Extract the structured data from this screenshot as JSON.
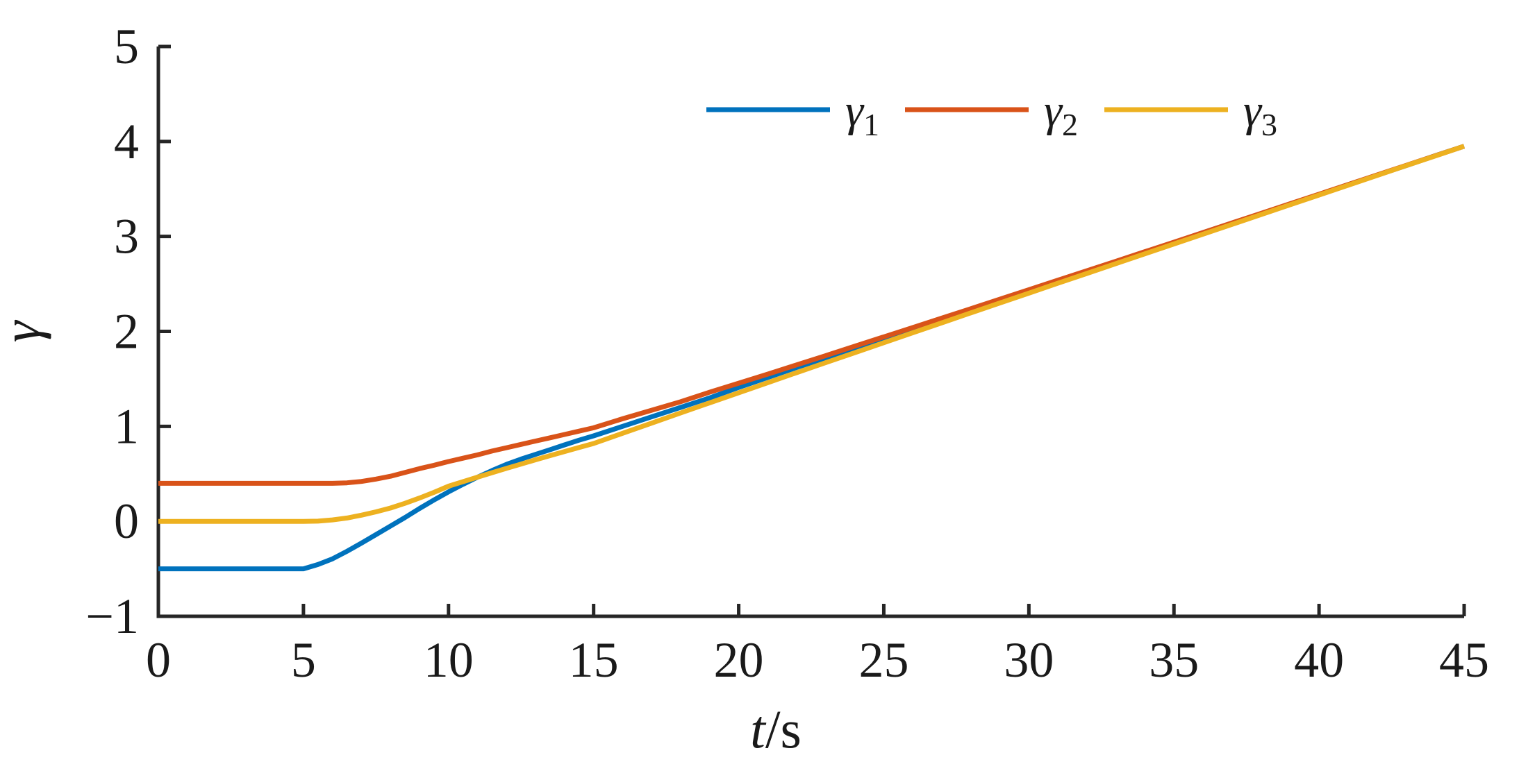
{
  "figure": {
    "ylabel": "γ",
    "xlabel_main": "t",
    "xlabel_suffix": "/s",
    "background": "#ffffff",
    "axis_color": "#262626",
    "text_color": "#1a1a1a"
  },
  "chart_data": {
    "type": "line",
    "title": "",
    "xlabel": "t/s",
    "ylabel": "γ",
    "xlim": [
      0,
      45
    ],
    "ylim": [
      -1,
      5
    ],
    "grid": false,
    "xticks": {
      "values": [
        0,
        5,
        10,
        15,
        20,
        25,
        30,
        35,
        40,
        45
      ],
      "labels": [
        "0",
        "5",
        "10",
        "15",
        "20",
        "25",
        "30",
        "35",
        "40",
        "45"
      ]
    },
    "yticks": {
      "values": [
        -1,
        0,
        1,
        2,
        3,
        4,
        5
      ],
      "labels": [
        "−1",
        "0",
        "1",
        "2",
        "3",
        "4",
        "5"
      ]
    },
    "legend": {
      "frame": false,
      "position": "top-center-right",
      "entries": [
        {
          "base": "γ",
          "sub": "1",
          "color": "#0072BD"
        },
        {
          "base": "γ",
          "sub": "2",
          "color": "#D95319"
        },
        {
          "base": "γ",
          "sub": "3",
          "color": "#EDB120"
        }
      ]
    },
    "series": [
      {
        "name": "γ1",
        "color": "#0072BD",
        "points": [
          [
            0,
            -0.5
          ],
          [
            5,
            -0.5
          ],
          [
            5.5,
            -0.455
          ],
          [
            6,
            -0.395
          ],
          [
            6.5,
            -0.315
          ],
          [
            7,
            -0.23
          ],
          [
            7.5,
            -0.14
          ],
          [
            8,
            -0.05
          ],
          [
            8.5,
            0.04
          ],
          [
            9,
            0.135
          ],
          [
            9.5,
            0.225
          ],
          [
            10,
            0.31
          ],
          [
            10.5,
            0.39
          ],
          [
            11,
            0.465
          ],
          [
            11.5,
            0.535
          ],
          [
            12,
            0.6
          ],
          [
            12.5,
            0.655
          ],
          [
            13,
            0.705
          ],
          [
            13.5,
            0.755
          ],
          [
            14,
            0.805
          ],
          [
            14.5,
            0.855
          ],
          [
            15,
            0.9
          ],
          [
            16,
            1.0
          ],
          [
            17,
            1.1
          ],
          [
            18,
            1.2
          ],
          [
            19,
            1.3
          ],
          [
            20,
            1.41
          ],
          [
            21,
            1.515
          ],
          [
            22,
            1.62
          ],
          [
            23,
            1.72
          ],
          [
            24,
            1.825
          ],
          [
            25,
            1.925
          ],
          [
            26,
            2.03
          ],
          [
            27,
            2.13
          ],
          [
            28,
            2.23
          ],
          [
            29,
            2.33
          ],
          [
            30,
            2.43
          ],
          [
            31,
            2.53
          ],
          [
            32,
            2.63
          ],
          [
            33,
            2.73
          ],
          [
            34,
            2.835
          ],
          [
            35,
            2.935
          ],
          [
            36,
            3.04
          ],
          [
            37,
            3.14
          ],
          [
            38,
            3.24
          ],
          [
            39,
            3.34
          ],
          [
            40,
            3.44
          ],
          [
            41,
            3.545
          ],
          [
            42,
            3.645
          ],
          [
            43,
            3.745
          ],
          [
            44,
            3.85
          ],
          [
            45,
            3.95
          ]
        ]
      },
      {
        "name": "γ2",
        "color": "#D95319",
        "points": [
          [
            0,
            0.4
          ],
          [
            5,
            0.4
          ],
          [
            5.5,
            0.4
          ],
          [
            6,
            0.4
          ],
          [
            6.5,
            0.405
          ],
          [
            7,
            0.42
          ],
          [
            7.5,
            0.445
          ],
          [
            8,
            0.475
          ],
          [
            8.5,
            0.515
          ],
          [
            9,
            0.555
          ],
          [
            9.5,
            0.59
          ],
          [
            10,
            0.63
          ],
          [
            10.5,
            0.665
          ],
          [
            11,
            0.7
          ],
          [
            11.5,
            0.74
          ],
          [
            12,
            0.775
          ],
          [
            12.5,
            0.81
          ],
          [
            13,
            0.845
          ],
          [
            13.5,
            0.88
          ],
          [
            14,
            0.915
          ],
          [
            14.5,
            0.95
          ],
          [
            15,
            0.985
          ],
          [
            16,
            1.08
          ],
          [
            17,
            1.17
          ],
          [
            18,
            1.26
          ],
          [
            19,
            1.36
          ],
          [
            20,
            1.455
          ],
          [
            21,
            1.55
          ],
          [
            22,
            1.648
          ],
          [
            23,
            1.745
          ],
          [
            24,
            1.844
          ],
          [
            25,
            1.942
          ],
          [
            26,
            2.041
          ],
          [
            27,
            2.14
          ],
          [
            28,
            2.239
          ],
          [
            29,
            2.339
          ],
          [
            30,
            2.439
          ],
          [
            31,
            2.539
          ],
          [
            32,
            2.639
          ],
          [
            33,
            2.739
          ],
          [
            34,
            2.84
          ],
          [
            35,
            2.94
          ],
          [
            36,
            3.041
          ],
          [
            37,
            3.142
          ],
          [
            38,
            3.243
          ],
          [
            39,
            3.344
          ],
          [
            40,
            3.445
          ],
          [
            41,
            3.546
          ],
          [
            42,
            3.647
          ],
          [
            43,
            3.748
          ],
          [
            44,
            3.849
          ],
          [
            45,
            3.95
          ]
        ]
      },
      {
        "name": "γ3",
        "color": "#EDB120",
        "points": [
          [
            0,
            0
          ],
          [
            5,
            0
          ],
          [
            5.5,
            0.002
          ],
          [
            6,
            0.015
          ],
          [
            6.5,
            0.035
          ],
          [
            7,
            0.065
          ],
          [
            7.5,
            0.1
          ],
          [
            8,
            0.14
          ],
          [
            8.5,
            0.19
          ],
          [
            9,
            0.245
          ],
          [
            9.5,
            0.305
          ],
          [
            10,
            0.37
          ],
          [
            10.5,
            0.418
          ],
          [
            11,
            0.465
          ],
          [
            11.5,
            0.512
          ],
          [
            12,
            0.558
          ],
          [
            12.5,
            0.603
          ],
          [
            13,
            0.648
          ],
          [
            13.5,
            0.692
          ],
          [
            14,
            0.735
          ],
          [
            14.5,
            0.778
          ],
          [
            15,
            0.82
          ],
          [
            16,
            0.927
          ],
          [
            17,
            1.034
          ],
          [
            18,
            1.141
          ],
          [
            19,
            1.248
          ],
          [
            20,
            1.354
          ],
          [
            21,
            1.46
          ],
          [
            22,
            1.566
          ],
          [
            23,
            1.671
          ],
          [
            24,
            1.776
          ],
          [
            25,
            1.881
          ],
          [
            26,
            1.986
          ],
          [
            27,
            2.09
          ],
          [
            28,
            2.195
          ],
          [
            29,
            2.299
          ],
          [
            30,
            2.403
          ],
          [
            31,
            2.507
          ],
          [
            32,
            2.61
          ],
          [
            33,
            2.714
          ],
          [
            34,
            2.817
          ],
          [
            35,
            2.921
          ],
          [
            36,
            3.024
          ],
          [
            37,
            3.127
          ],
          [
            38,
            3.23
          ],
          [
            39,
            3.333
          ],
          [
            40,
            3.436
          ],
          [
            41,
            3.539
          ],
          [
            42,
            3.642
          ],
          [
            43,
            3.745
          ],
          [
            44,
            3.847
          ],
          [
            45,
            3.95
          ]
        ]
      }
    ]
  }
}
